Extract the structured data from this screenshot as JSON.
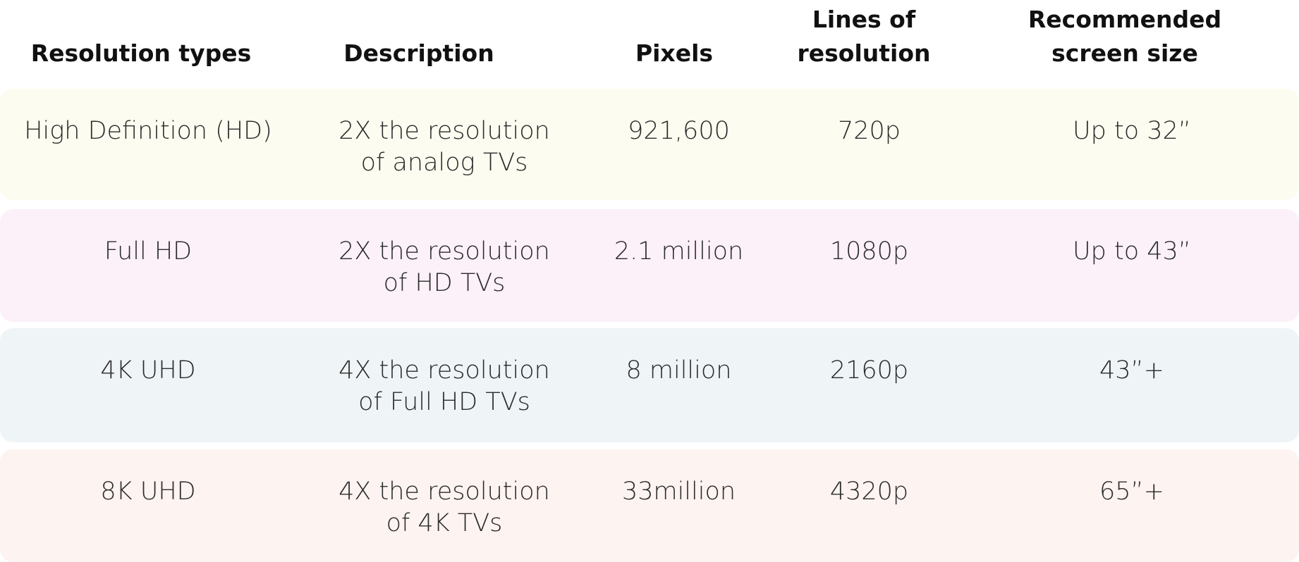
{
  "table": {
    "headers": [
      "Resolution types",
      "Description",
      "Pixels",
      "Lines of\nresolution",
      "Recommended\nscreen size"
    ],
    "rows": [
      {
        "type": "High Definition (HD)",
        "description": "2X the resolution of analog TVs",
        "pixels": "921,600",
        "lines": "720p",
        "screen": "Up to 32”",
        "color": "#fcfdf0"
      },
      {
        "type": "Full HD",
        "description": "2X the resolution of HD TVs",
        "pixels": "2.1 million",
        "lines": "1080p",
        "screen": "Up to 43”",
        "color": "#fcf1f9"
      },
      {
        "type": "4K UHD",
        "description": "4X the resolution of Full HD TVs",
        "pixels": "8 million",
        "lines": "2160p",
        "screen": "43”+",
        "color": "#eff4f6"
      },
      {
        "type": "8K UHD",
        "description": "4X the resolution of 4K TVs",
        "pixels": "33million",
        "lines": "4320p",
        "screen": "65”+",
        "color": "#fdf3f1"
      }
    ]
  }
}
